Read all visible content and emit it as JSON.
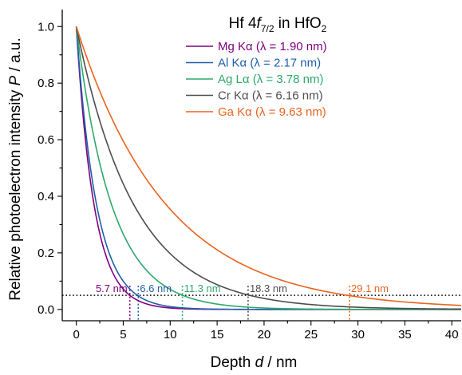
{
  "chart_data": {
    "type": "line",
    "title": {
      "prefix": "Hf 4",
      "italic": "f",
      "subscript": "7/2",
      "middle": " in HfO",
      "subscript2": "2"
    },
    "xlabel": {
      "prefix": "Depth ",
      "italic": "d",
      "suffix": " / nm"
    },
    "ylabel": {
      "prefix": "Relative photoelectron intensity ",
      "italic": "P",
      "suffix": " / a.u."
    },
    "xlim": [
      -1.5,
      41
    ],
    "ylim": [
      -0.04,
      1.06
    ],
    "xticks": [
      0,
      5,
      10,
      15,
      20,
      25,
      30,
      35,
      40
    ],
    "xtick_labels": [
      "0",
      "5",
      "10",
      "15",
      "20",
      "25",
      "30",
      "35",
      "40"
    ],
    "yticks": [
      0.0,
      0.2,
      0.4,
      0.6,
      0.8,
      1.0
    ],
    "ytick_labels": [
      "0.0",
      "0.2",
      "0.4",
      "0.6",
      "0.8",
      "1.0"
    ],
    "grid": false,
    "legend": "top-right",
    "threshold": {
      "y": 0.05,
      "style": "dotted",
      "color": "#000000"
    },
    "series": [
      {
        "name": "Mg Kα (λ = 1.90 nm)",
        "color": "#800080",
        "decay_length_nm": 1.9,
        "info_depth_nm": 5.7,
        "annotation": "5.7 nm",
        "annotation_color": "#800080"
      },
      {
        "name": "Al Kα (λ = 2.17 nm)",
        "color": "#1f5fa8",
        "decay_length_nm": 2.17,
        "info_depth_nm": 6.6,
        "annotation": "6.6 nm",
        "annotation_color": "#1f5fa8"
      },
      {
        "name": "Ag Lα (λ = 3.78 nm)",
        "color": "#2ea86a",
        "decay_length_nm": 3.78,
        "info_depth_nm": 11.3,
        "annotation": "11.3 nm",
        "annotation_color": "#2ea86a"
      },
      {
        "name": "Cr Kα (λ = 6.16 nm)",
        "color": "#4d4d4d",
        "decay_length_nm": 6.16,
        "info_depth_nm": 18.3,
        "annotation": "18.3 nm",
        "annotation_color": "#4d4d4d"
      },
      {
        "name": "Ga Kα (λ = 9.63 nm)",
        "color": "#e8641e",
        "decay_length_nm": 9.63,
        "info_depth_nm": 29.1,
        "annotation": "29.1 nm",
        "annotation_color": "#e8641e"
      }
    ]
  }
}
